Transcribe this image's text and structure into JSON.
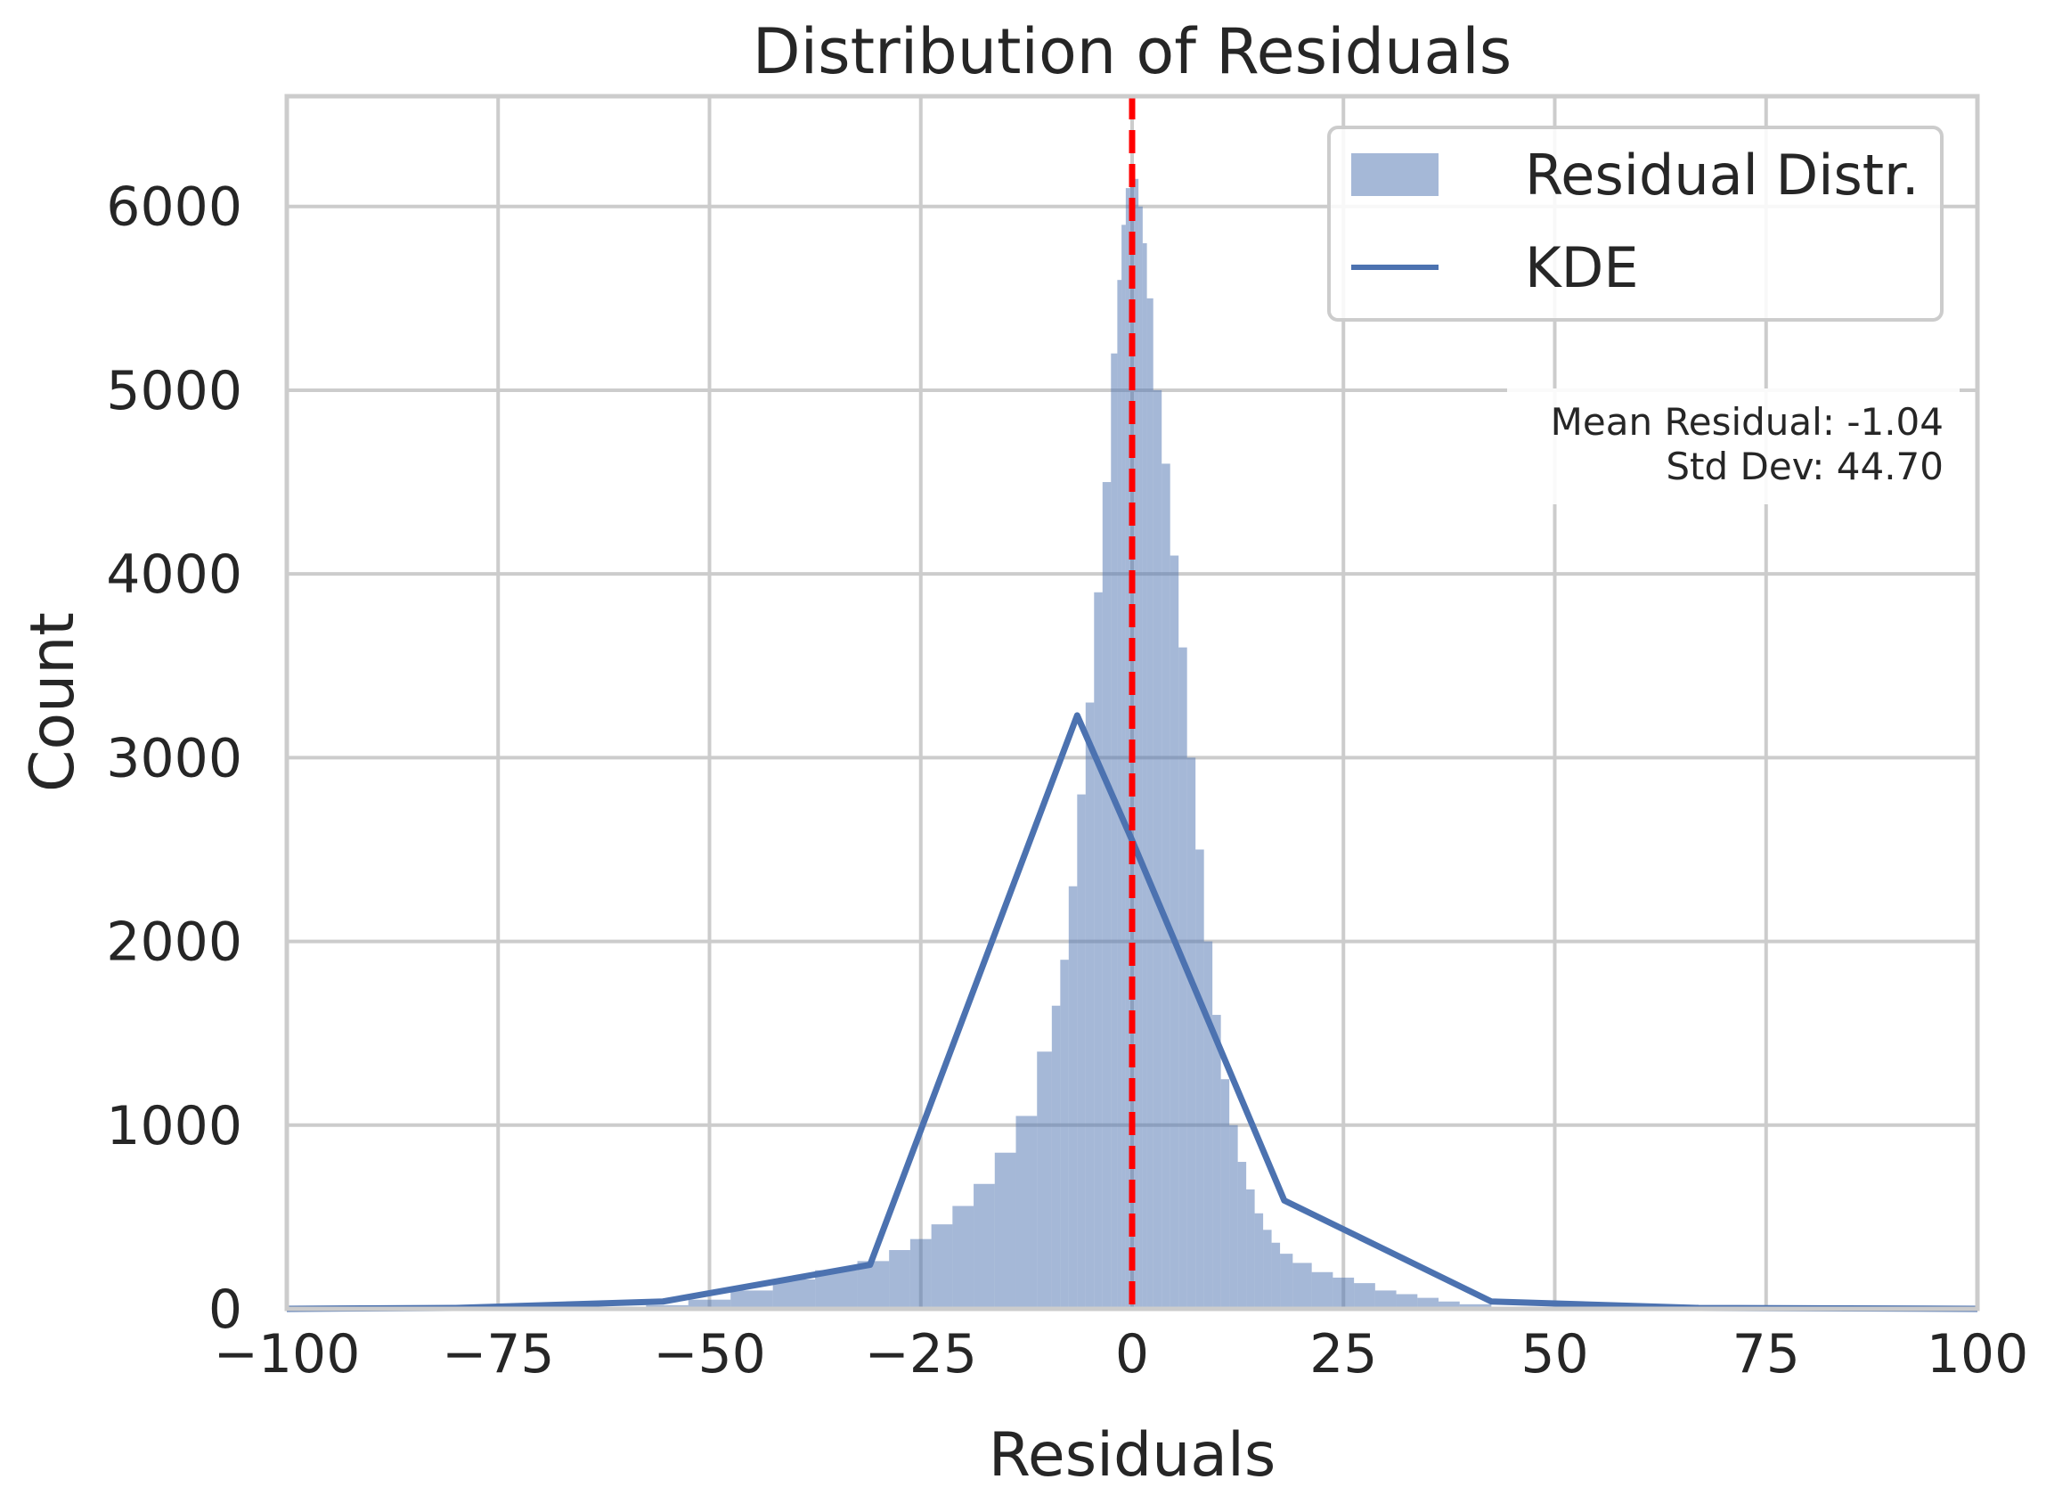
{
  "chart_data": {
    "type": "bar",
    "title": "Distribution of Residuals",
    "xlabel": "Residuals",
    "ylabel": "Count",
    "xlim": [
      -100,
      100
    ],
    "ylim": [
      0,
      6600
    ],
    "grid": true,
    "legend_position": "top-right",
    "x_ticks": [
      -100,
      -75,
      -50,
      -25,
      0,
      25,
      50,
      75,
      100
    ],
    "x_tick_labels": [
      "−100",
      "−75",
      "−50",
      "−25",
      "0",
      "25",
      "50",
      "75",
      "100"
    ],
    "y_ticks": [
      0,
      1000,
      2000,
      3000,
      4000,
      5000,
      6000
    ],
    "y_tick_labels": [
      "0",
      "1000",
      "2000",
      "3000",
      "4000",
      "5000",
      "6000"
    ],
    "series": [
      {
        "name": "Residual Distr.",
        "kind": "histogram",
        "color": "#4c72b0",
        "opacity": 0.5,
        "bin_centers": [
          -55,
          -50,
          -45,
          -40,
          -35,
          -30,
          -27.5,
          -25,
          -22.5,
          -20,
          -17.5,
          -15,
          -12.5,
          -10,
          -9,
          -8,
          -7,
          -6,
          -5,
          -4,
          -3,
          -2,
          -1.5,
          -1,
          -0.5,
          0,
          0.5,
          1,
          1.5,
          2,
          3,
          4,
          5,
          6,
          7,
          8,
          9,
          10,
          11,
          12,
          13,
          14,
          15,
          16,
          17,
          18,
          20,
          22.5,
          25,
          27.5,
          30,
          32.5,
          35,
          37.5,
          40,
          45
        ],
        "values": [
          20,
          50,
          100,
          160,
          210,
          260,
          320,
          380,
          460,
          560,
          680,
          850,
          1050,
          1400,
          1650,
          1900,
          2300,
          2800,
          3300,
          3900,
          4500,
          5200,
          5600,
          5900,
          6100,
          6200,
          6150,
          6000,
          5800,
          5500,
          5000,
          4600,
          4100,
          3600,
          3000,
          2500,
          2000,
          1600,
          1250,
          1000,
          800,
          650,
          520,
          430,
          360,
          300,
          250,
          200,
          170,
          140,
          100,
          80,
          60,
          40,
          25,
          10
        ]
      },
      {
        "name": "KDE",
        "kind": "line",
        "color": "#4c72b0",
        "x": [
          -100,
          -80,
          -55.5,
          -31,
          -6.5,
          0,
          18,
          42.5,
          67,
          100
        ],
        "y": [
          0,
          5,
          40,
          240,
          3230,
          2550,
          590,
          40,
          5,
          0
        ]
      }
    ],
    "reference_line": {
      "x": 0,
      "color": "#ff0000",
      "style": "dashed"
    },
    "annotation": {
      "line1": "Mean Residual: -1.04",
      "line2": "Std Dev: 44.70"
    }
  }
}
